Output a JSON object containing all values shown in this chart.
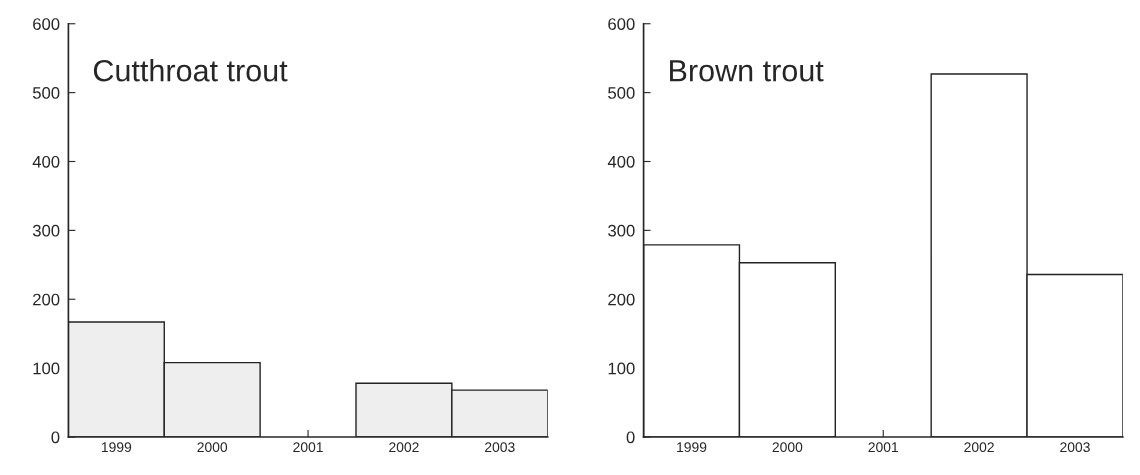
{
  "chart_data": [
    {
      "type": "bar",
      "title": "Cutthroat trout",
      "categories": [
        "1999",
        "2000",
        "2001",
        "2002",
        "2003"
      ],
      "values": [
        167,
        108,
        0,
        78,
        68
      ],
      "color": "#eeeeee",
      "ylim": [
        0,
        600
      ],
      "yticks": [
        0,
        100,
        200,
        300,
        400,
        500,
        600
      ],
      "grid": false
    },
    {
      "type": "bar",
      "title": "Brown trout",
      "categories": [
        "1999",
        "2000",
        "2001",
        "2002",
        "2003"
      ],
      "values": [
        279,
        253,
        0,
        527,
        236
      ],
      "color": "#ffffff",
      "ylim": [
        0,
        600
      ],
      "yticks": [
        0,
        100,
        200,
        300,
        400,
        500,
        600
      ],
      "grid": false
    }
  ]
}
